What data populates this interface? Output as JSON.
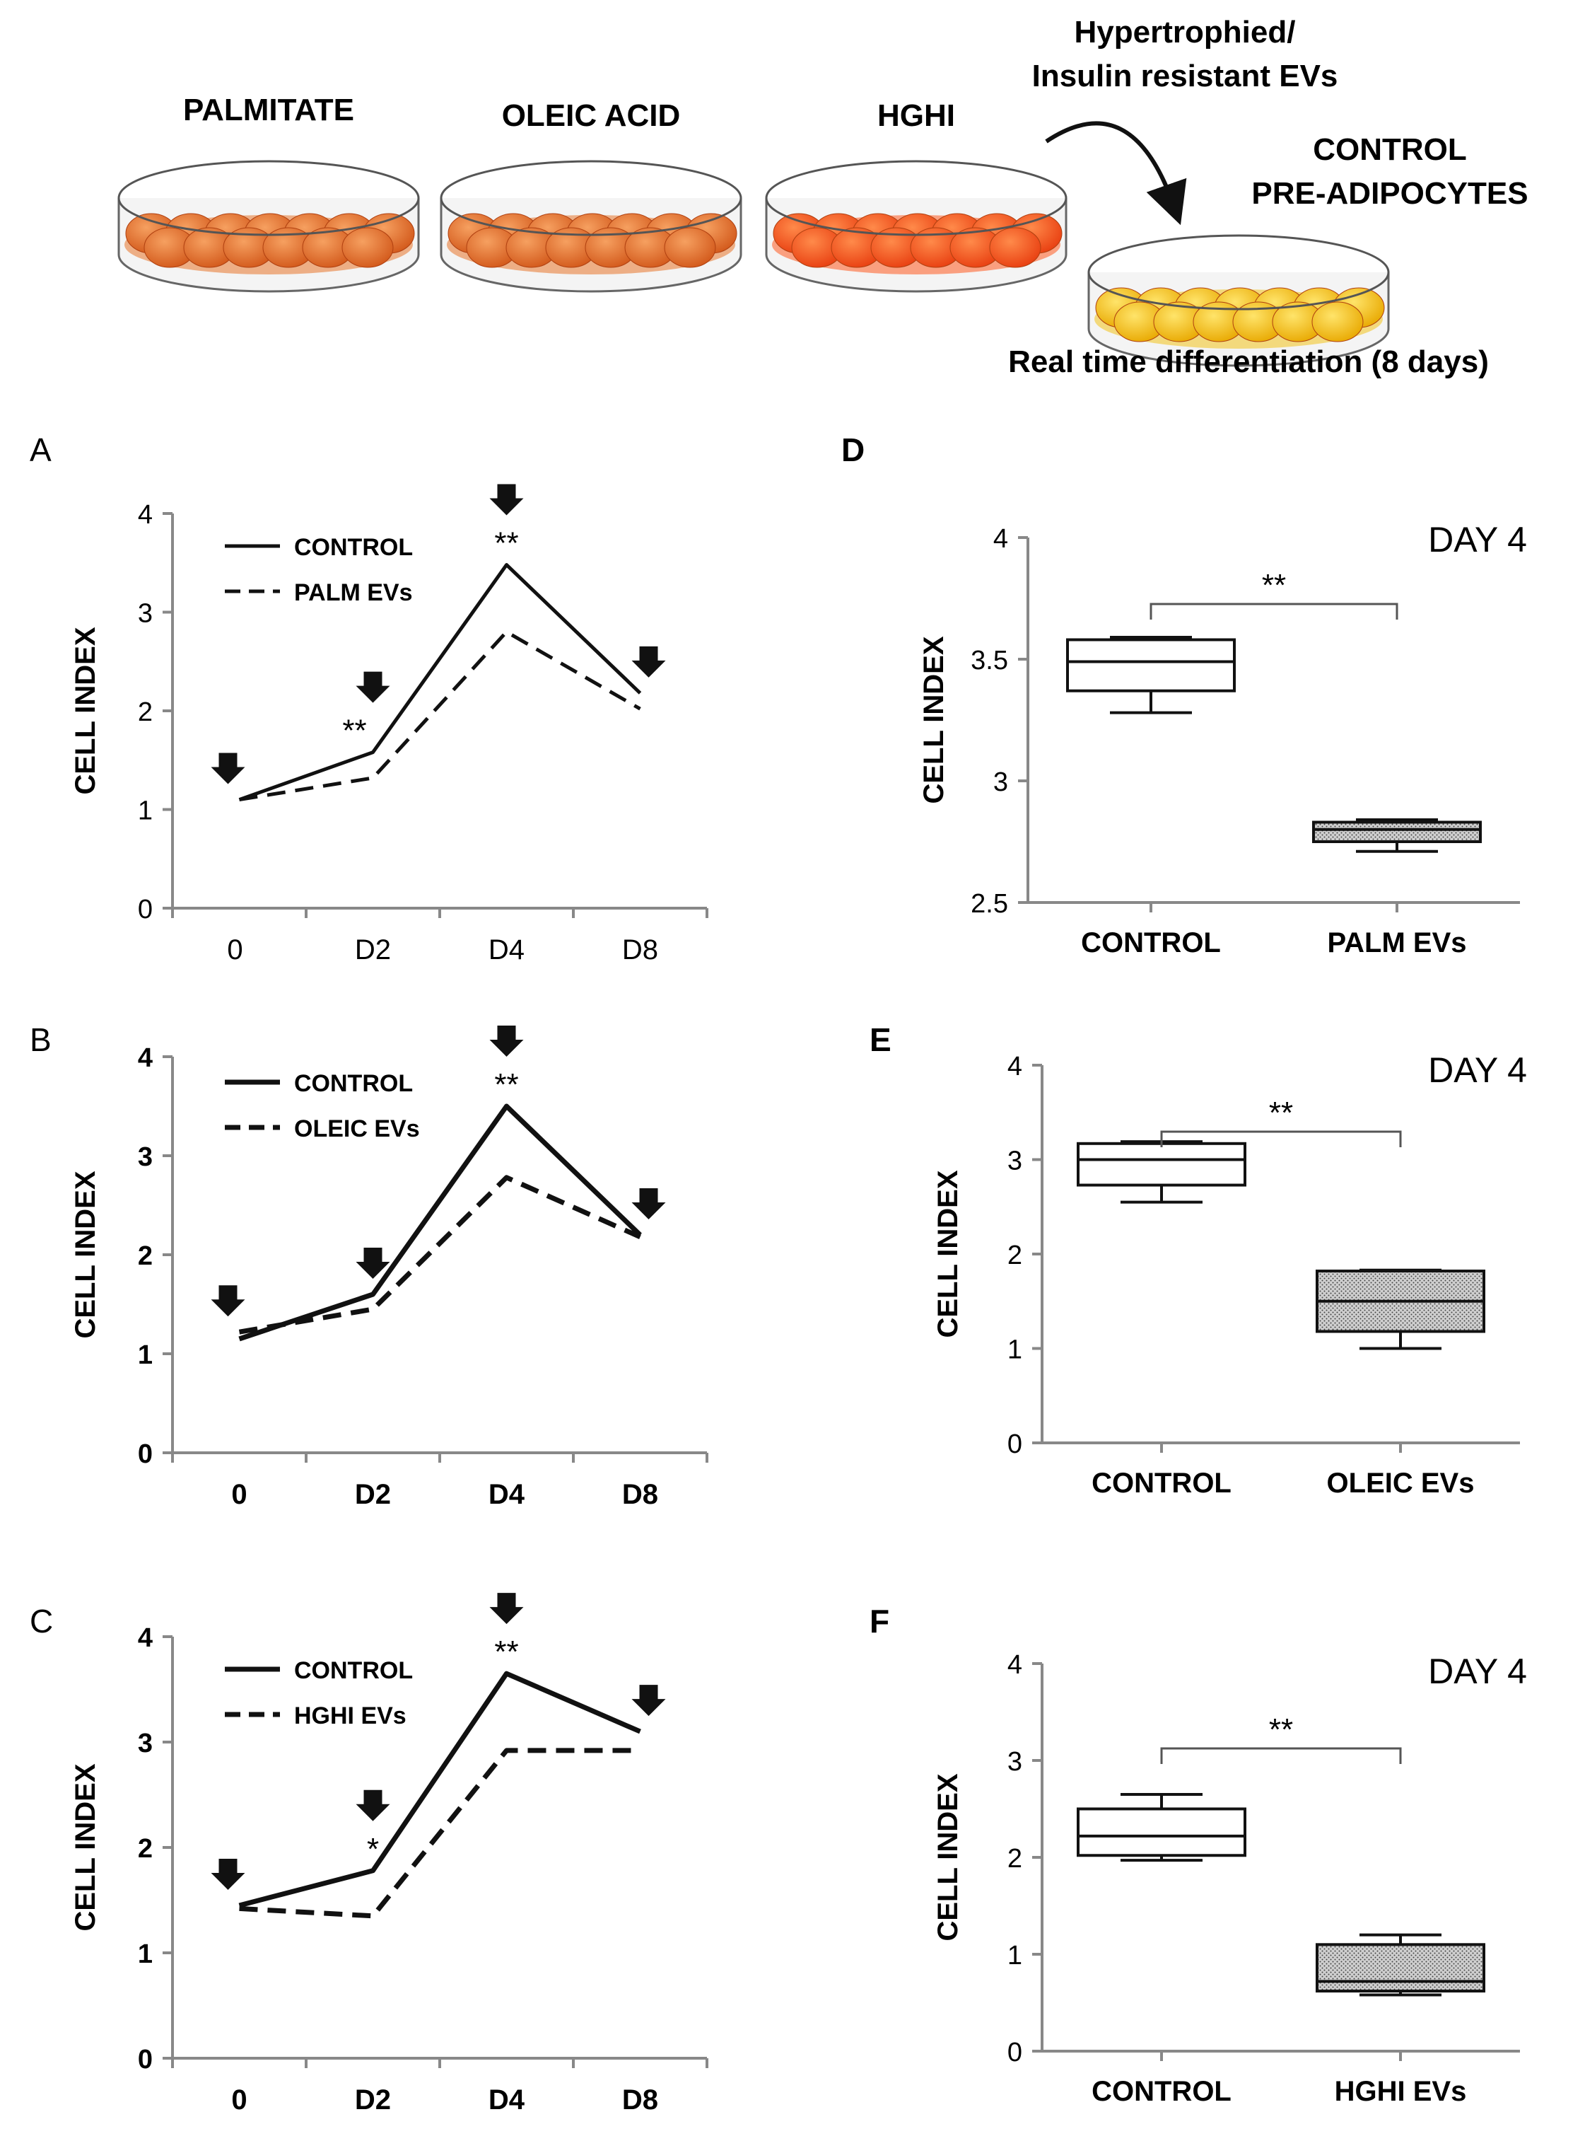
{
  "schematic": {
    "dishes": [
      "PALMITATE",
      "OLEIC ACID",
      "HGHI"
    ],
    "arrow_label_line1": "Hypertrophied/",
    "arrow_label_line2": "Insulin resistant EVs",
    "target_line1": "CONTROL",
    "target_line2": "PRE-ADIPOCYTES",
    "footer": "Real time differentiation (8 days)",
    "colors": {
      "treated_cells": "#e8742a",
      "hghi_cells": "#ff5a1f",
      "control_cells": "#f2c21a"
    }
  },
  "chart_data": [
    {
      "panel": "A",
      "type": "line",
      "ylabel": "CELL INDEX",
      "ylim": [
        0,
        4
      ],
      "yticks": [
        "0",
        "1",
        "2",
        "3",
        "4"
      ],
      "categories": [
        "0",
        "D2",
        "D4",
        "D8"
      ],
      "series": [
        {
          "name": "CONTROL",
          "style": "solid",
          "values": [
            1.1,
            1.58,
            3.48,
            2.18
          ]
        },
        {
          "name": "PALM EVs",
          "style": "dashed",
          "values": [
            1.1,
            1.32,
            2.8,
            2.02
          ]
        }
      ],
      "arrows": [
        0,
        1,
        2,
        3
      ],
      "significance": [
        {
          "index": 1,
          "label": "**"
        },
        {
          "index": 2,
          "label": "**"
        }
      ]
    },
    {
      "panel": "B",
      "type": "line",
      "ylabel": "CELL INDEX",
      "ylim": [
        0,
        4
      ],
      "yticks": [
        "0",
        "1",
        "2",
        "3",
        "4"
      ],
      "categories": [
        "0",
        "D2",
        "D4",
        "D8"
      ],
      "series": [
        {
          "name": "CONTROL",
          "style": "solid",
          "values": [
            1.15,
            1.6,
            3.5,
            2.2
          ]
        },
        {
          "name": "OLEIC EVs",
          "style": "dashed",
          "values": [
            1.22,
            1.45,
            2.78,
            2.18
          ]
        }
      ],
      "arrows": [
        0,
        1,
        2,
        3
      ],
      "significance": [
        {
          "index": 2,
          "label": "**"
        }
      ]
    },
    {
      "panel": "C",
      "type": "line",
      "ylabel": "CELL INDEX",
      "ylim": [
        0,
        4
      ],
      "yticks": [
        "0",
        "1",
        "2",
        "3",
        "4"
      ],
      "categories": [
        "0",
        "D2",
        "D4",
        "D8"
      ],
      "series": [
        {
          "name": "CONTROL",
          "style": "solid",
          "values": [
            1.45,
            1.78,
            3.65,
            3.1
          ]
        },
        {
          "name": "HGHI EVs",
          "style": "dashed",
          "values": [
            1.42,
            1.35,
            2.92,
            2.92
          ]
        }
      ],
      "arrows": [
        0,
        1,
        2,
        3
      ],
      "significance": [
        {
          "index": 1,
          "label": "*"
        },
        {
          "index": 2,
          "label": "**"
        }
      ]
    },
    {
      "panel": "D",
      "type": "box",
      "title": "DAY 4",
      "ylabel": "CELL INDEX",
      "ylim": [
        2.5,
        4
      ],
      "yticks": [
        "2.5",
        "3",
        "3.5",
        "4"
      ],
      "categories": [
        "CONTROL",
        "PALM EVs"
      ],
      "boxes": [
        {
          "min": 3.28,
          "q1": 3.37,
          "median": 3.49,
          "q3": 3.58,
          "max": 3.59,
          "fill": "white"
        },
        {
          "min": 2.71,
          "q1": 2.75,
          "median": 2.8,
          "q3": 2.83,
          "max": 2.84,
          "fill": "hatched"
        }
      ],
      "significance": "**"
    },
    {
      "panel": "E",
      "type": "box",
      "title": "DAY 4",
      "ylabel": "CELL INDEX",
      "ylim": [
        0,
        4
      ],
      "yticks": [
        "0",
        "1",
        "2",
        "3",
        "4"
      ],
      "categories": [
        "CONTROL",
        "OLEIC EVs"
      ],
      "boxes": [
        {
          "min": 2.55,
          "q1": 2.73,
          "median": 3.0,
          "q3": 3.17,
          "max": 3.19,
          "fill": "white"
        },
        {
          "min": 1.0,
          "q1": 1.18,
          "median": 1.5,
          "q3": 1.82,
          "max": 1.83,
          "fill": "hatched"
        }
      ],
      "significance": "**"
    },
    {
      "panel": "F",
      "type": "box",
      "title": "DAY 4",
      "ylabel": "CELL INDEX",
      "ylim": [
        0,
        4
      ],
      "yticks": [
        "0",
        "1",
        "2",
        "3",
        "4"
      ],
      "categories": [
        "CONTROL",
        "HGHI EVs"
      ],
      "boxes": [
        {
          "min": 1.97,
          "q1": 2.02,
          "median": 2.22,
          "q3": 2.5,
          "max": 2.65,
          "fill": "white"
        },
        {
          "min": 0.58,
          "q1": 0.62,
          "median": 0.72,
          "q3": 1.1,
          "max": 1.2,
          "fill": "hatched"
        }
      ],
      "significance": "**"
    }
  ]
}
